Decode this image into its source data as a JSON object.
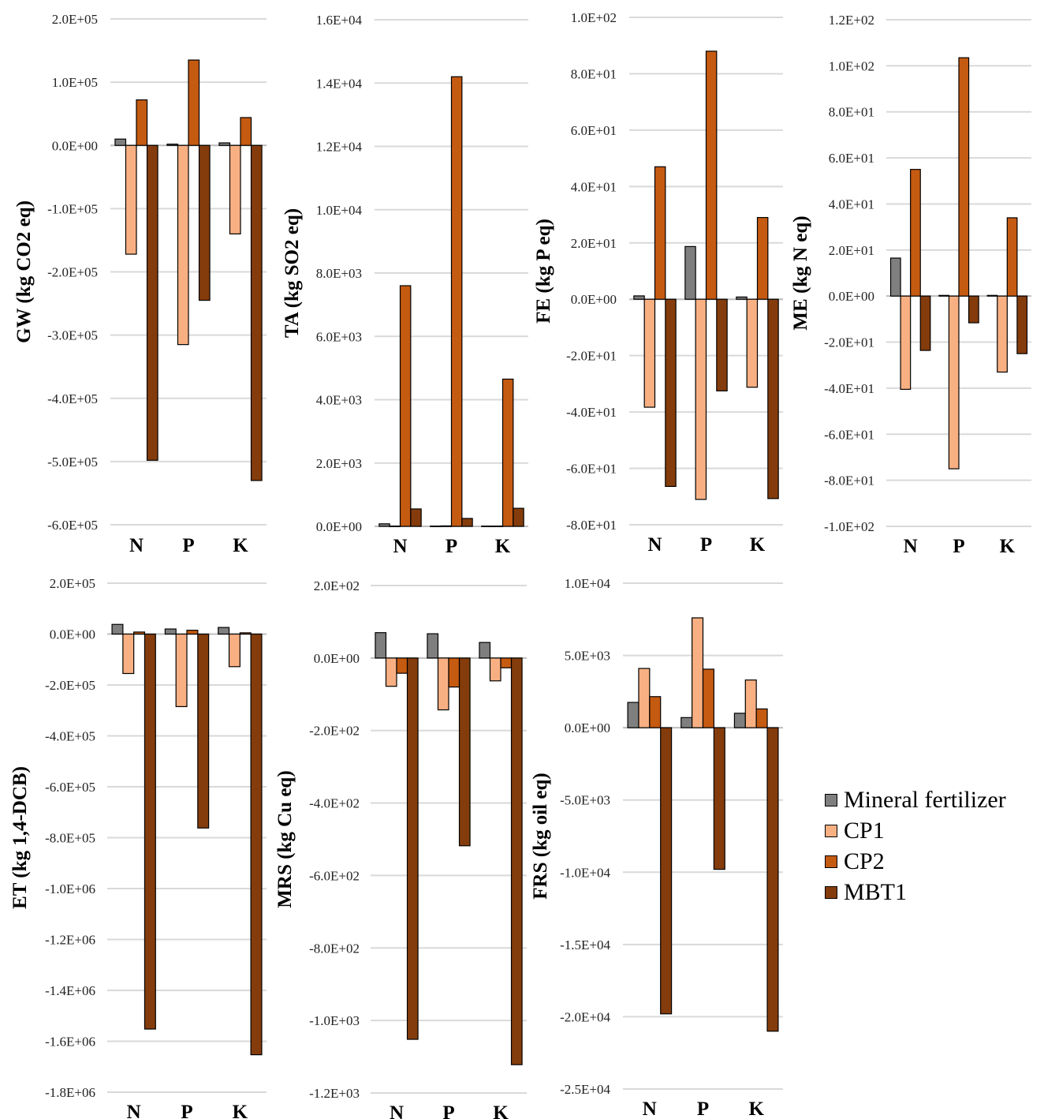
{
  "chart_data": [
    {
      "type": "bar",
      "ylabel": "GW (kg CO2 eq)",
      "categories": [
        "N",
        "P",
        "K"
      ],
      "ylim": [
        -600000,
        200000
      ],
      "ticks": [
        "2.0E+05",
        "1.0E+05",
        "0.0E+00",
        "-1.0E+05",
        "-2.0E+05",
        "-3.0E+05",
        "-4.0E+05",
        "-5.0E+05",
        "-6.0E+05"
      ],
      "series": [
        {
          "name": "Mineral fertilizer",
          "values": [
            10000,
            2000,
            4000
          ]
        },
        {
          "name": "CP1",
          "values": [
            -172000,
            -315000,
            -140000
          ]
        },
        {
          "name": "CP2",
          "values": [
            72000,
            135000,
            44000
          ]
        },
        {
          "name": "MBT1",
          "values": [
            -498000,
            -245000,
            -530000
          ]
        }
      ]
    },
    {
      "type": "bar",
      "ylabel": "TA (kg SO2 eq)",
      "categories": [
        "N",
        "P",
        "K"
      ],
      "ylim": [
        0,
        16000
      ],
      "ticks": [
        "1.6E+04",
        "1.4E+04",
        "1.2E+04",
        "1.0E+04",
        "8.0E+03",
        "6.0E+03",
        "4.0E+03",
        "2.0E+03",
        "0.0E+00"
      ],
      "series": [
        {
          "name": "Mineral fertilizer",
          "values": [
            80,
            10,
            10
          ]
        },
        {
          "name": "CP1",
          "values": [
            10,
            15,
            10
          ]
        },
        {
          "name": "CP2",
          "values": [
            7600,
            14200,
            4650
          ]
        },
        {
          "name": "MBT1",
          "values": [
            550,
            250,
            570
          ]
        }
      ]
    },
    {
      "type": "bar",
      "ylabel": "FE (kg P eq)",
      "categories": [
        "N",
        "P",
        "K"
      ],
      "ylim": [
        -80,
        100
      ],
      "ticks": [
        "1.0E+02",
        "8.0E+01",
        "6.0E+01",
        "4.0E+01",
        "2.0E+01",
        "0.0E+00",
        "-2.0E+01",
        "-4.0E+01",
        "-6.0E+01",
        "-8.0E+01"
      ],
      "series": [
        {
          "name": "Mineral fertilizer",
          "values": [
            1.2,
            18.7,
            0.8
          ]
        },
        {
          "name": "CP1",
          "values": [
            -38.3,
            -71,
            -31.2
          ]
        },
        {
          "name": "CP2",
          "values": [
            47,
            88,
            29
          ]
        },
        {
          "name": "MBT1",
          "values": [
            -66.4,
            -32.5,
            -70.7
          ]
        }
      ]
    },
    {
      "type": "bar",
      "ylabel": "ME (kg N eq)",
      "categories": [
        "N",
        "P",
        "K"
      ],
      "ylim": [
        -100,
        120
      ],
      "ticks": [
        "1.2E+02",
        "1.0E+02",
        "8.0E+01",
        "6.0E+01",
        "4.0E+01",
        "2.0E+01",
        "0.0E+00",
        "-2.0E+01",
        "-4.0E+01",
        "-6.0E+01",
        "-8.0E+01",
        "-1.0E+02"
      ],
      "series": [
        {
          "name": "Mineral fertilizer",
          "values": [
            16.5,
            0.3,
            0.3
          ]
        },
        {
          "name": "CP1",
          "values": [
            -40.5,
            -75,
            -33
          ]
        },
        {
          "name": "CP2",
          "values": [
            55,
            103.5,
            34
          ]
        },
        {
          "name": "MBT1",
          "values": [
            -23.6,
            -11.6,
            -25
          ]
        }
      ]
    },
    {
      "type": "bar",
      "ylabel": "ET (kg 1,4-DCB)",
      "categories": [
        "N",
        "P",
        "K"
      ],
      "ylim": [
        -1800000,
        200000
      ],
      "ticks": [
        "2.0E+05",
        "0.0E+00",
        "-2.0E+05",
        "-4.0E+05",
        "-6.0E+05",
        "-8.0E+05",
        "-1.0E+06",
        "-1.2E+06",
        "-1.4E+06",
        "-1.6E+06",
        "-1.8E+06"
      ],
      "series": [
        {
          "name": "Mineral fertilizer",
          "values": [
            38000,
            20000,
            26000
          ]
        },
        {
          "name": "CP1",
          "values": [
            -155000,
            -285000,
            -128000
          ]
        },
        {
          "name": "CP2",
          "values": [
            8000,
            15000,
            5000
          ]
        },
        {
          "name": "MBT1",
          "values": [
            -1552000,
            -762000,
            -1653000
          ]
        }
      ]
    },
    {
      "type": "bar",
      "ylabel": "MRS (kg Cu eq)",
      "categories": [
        "N",
        "P",
        "K"
      ],
      "ylim": [
        -1200,
        200
      ],
      "ticks": [
        "2.0E+02",
        "0.0E+00",
        "-2.0E+02",
        "-4.0E+02",
        "-6.0E+02",
        "-8.0E+02",
        "-1.0E+03",
        "-1.2E+03"
      ],
      "series": [
        {
          "name": "Mineral fertilizer",
          "values": [
            70,
            67,
            43
          ]
        },
        {
          "name": "CP1",
          "values": [
            -78,
            -143,
            -63
          ]
        },
        {
          "name": "CP2",
          "values": [
            -42,
            -80,
            -27
          ]
        },
        {
          "name": "MBT1",
          "values": [
            -1052,
            -518,
            -1122
          ]
        }
      ]
    },
    {
      "type": "bar",
      "ylabel": "FRS (kg oil eq)",
      "categories": [
        "N",
        "P",
        "K"
      ],
      "ylim": [
        -25000,
        10000
      ],
      "ticks": [
        "1.0E+04",
        "5.0E+03",
        "0.0E+00",
        "-5.0E+03",
        "-1.0E+04",
        "-1.5E+04",
        "-2.0E+04",
        "-2.5E+04"
      ],
      "series": [
        {
          "name": "Mineral fertilizer",
          "values": [
            1750,
            700,
            1000
          ]
        },
        {
          "name": "CP1",
          "values": [
            4100,
            7600,
            3300
          ]
        },
        {
          "name": "CP2",
          "values": [
            2150,
            4050,
            1300
          ]
        },
        {
          "name": "MBT1",
          "values": [
            -19800,
            -9800,
            -21000
          ]
        }
      ]
    }
  ],
  "legend": [
    {
      "label": "Mineral fertilizer",
      "color": "#7f7f7f"
    },
    {
      "label": "CP1",
      "color": "#f8b083"
    },
    {
      "label": "CP2",
      "color": "#c55a11"
    },
    {
      "label": "MBT1",
      "color": "#843c0c"
    }
  ]
}
